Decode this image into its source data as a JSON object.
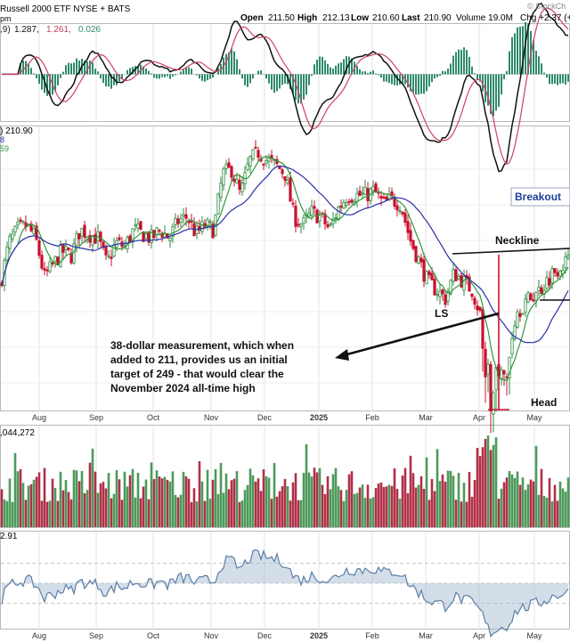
{
  "header": {
    "ticker_line": "Russell 2000 ETF  NYSE + BATS",
    "open_label": "Open",
    "open_value": "211.50",
    "high_label": "High",
    "high_value": "212.13",
    "low_label": "Low",
    "low_value": "210.60",
    "last_label": "Last",
    "last_value": "210.90",
    "volume_text": "Volume 19.0M",
    "change_text": "Chg +2.37 (+",
    "watermark": "© StockCh",
    "price_caption": "pm"
  },
  "macd_panel": {
    "label_prefix": ",9)",
    "v1": "1.287,",
    "v2": "1.261,",
    "v3": "0.026"
  },
  "price_panel": {
    "label_line1": ") 210.90",
    "label_line2": "8",
    "label_line3": "59"
  },
  "volume_panel": {
    "label": ",044,272"
  },
  "bottom_panel": {
    "label": "2.91"
  },
  "annotations": {
    "breakout": "Breakout",
    "neckline": "Neckline",
    "ls": "LS",
    "head": "Head",
    "measurement_lines": [
      "38-dollar measurement, which when",
      "added to 211, provides us an initial",
      "target of 249 - that would clear the",
      "November 2024 all-time high"
    ]
  },
  "colors": {
    "up": "#2e8b3f",
    "down": "#c8102e",
    "sma_short": "#2e9a3a",
    "sma_long": "#2b2fa8",
    "macd": "#111111",
    "signal": "#d04060",
    "hist": "#2e8b6a",
    "volume_up": "#4c9a5a",
    "volume_down": "#b03048",
    "bottom_line": "#5b7fa6",
    "breakout": "#1f3f9a"
  },
  "chart_data": {
    "type": "candlestick",
    "x_ticks": [
      "Aug",
      "Sep",
      "Oct",
      "Nov",
      "Dec",
      "2025",
      "Feb",
      "Mar",
      "Apr",
      "May"
    ],
    "price_path": [
      [
        0,
        193
      ],
      [
        10,
        203
      ],
      [
        20,
        206
      ],
      [
        30,
        207
      ],
      [
        40,
        204
      ],
      [
        50,
        195
      ],
      [
        60,
        198
      ],
      [
        70,
        201
      ],
      [
        80,
        200
      ],
      [
        90,
        206
      ],
      [
        100,
        205
      ],
      [
        110,
        204
      ],
      [
        120,
        198
      ],
      [
        130,
        203
      ],
      [
        140,
        202
      ],
      [
        150,
        206
      ],
      [
        160,
        205
      ],
      [
        170,
        204
      ],
      [
        180,
        206
      ],
      [
        190,
        204
      ],
      [
        200,
        208
      ],
      [
        210,
        209
      ],
      [
        220,
        205
      ],
      [
        230,
        207
      ],
      [
        240,
        206
      ],
      [
        250,
        219
      ],
      [
        260,
        220
      ],
      [
        270,
        214
      ],
      [
        280,
        222
      ],
      [
        290,
        224
      ],
      [
        300,
        222
      ],
      [
        310,
        221
      ],
      [
        320,
        219
      ],
      [
        330,
        209
      ],
      [
        340,
        207
      ],
      [
        350,
        210
      ],
      [
        360,
        209
      ],
      [
        370,
        206
      ],
      [
        380,
        211
      ],
      [
        390,
        214
      ],
      [
        400,
        214
      ],
      [
        410,
        214
      ],
      [
        420,
        215
      ],
      [
        430,
        212
      ],
      [
        440,
        213
      ],
      [
        450,
        212
      ],
      [
        460,
        204
      ],
      [
        470,
        199
      ],
      [
        480,
        194
      ],
      [
        490,
        192
      ],
      [
        500,
        190
      ],
      [
        510,
        196
      ],
      [
        520,
        194
      ],
      [
        530,
        192
      ],
      [
        540,
        186
      ],
      [
        550,
        172
      ],
      [
        560,
        175
      ],
      [
        570,
        177
      ],
      [
        580,
        187
      ],
      [
        590,
        189
      ],
      [
        600,
        191
      ],
      [
        610,
        193
      ],
      [
        620,
        196
      ],
      [
        630,
        198
      ],
      [
        640,
        199
      ]
    ],
    "price_ylim": [
      164,
      230
    ],
    "macd_ylim": [
      -7,
      6
    ],
    "bottom_ylim": [
      -0.4,
      0.4
    ]
  }
}
